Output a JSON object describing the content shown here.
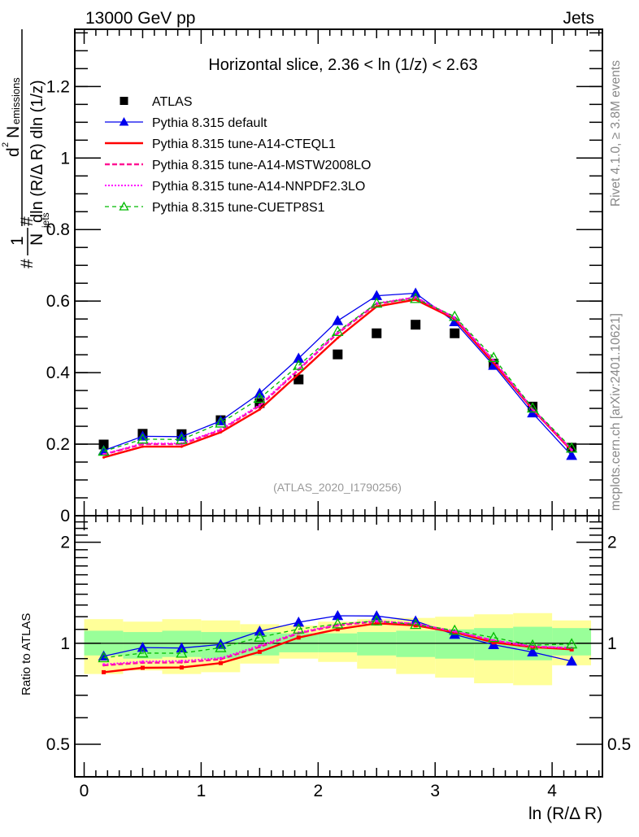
{
  "header": {
    "left_label": "13000 GeV pp",
    "right_label": "Jets"
  },
  "side_labels": {
    "rivet": "Rivet 4.1.0, ≥ 3.8M events",
    "mcplots": "mcplots.cern.ch [arXiv:2401.10621]"
  },
  "chart_data": [
    {
      "type": "line",
      "panel": "main",
      "title": "Horizontal slice, 2.36 < ln (1/z) < 2.63",
      "watermark": "(ATLAS_2020_I1790256)",
      "ylabel": "1/N_jets d²N_emissions / dln(R/ΔR) dln(1/z)",
      "ylabel_parts": {
        "prefix": "#",
        "one": "1",
        "njets_N": "N",
        "njets_sub": "jets",
        "hash2": "#",
        "num_d": "d",
        "num_sup": "2",
        "num_N": "N",
        "num_sub": "emissions",
        "den": "dln (R/Δ R) dln (1/z)"
      },
      "xlabel": "ln (R/Δ R)",
      "xlim": [
        -0.08,
        4.43
      ],
      "ylim": [
        0,
        1.36
      ],
      "yticks": [
        0,
        0.2,
        0.4,
        0.6,
        0.8,
        1,
        1.2
      ],
      "ytick_labels": [
        "0",
        "0.2",
        "0.4",
        "0.6",
        "0.8",
        "1",
        "1.2"
      ],
      "legend_position": "top-left",
      "x": [
        0.167,
        0.5,
        0.833,
        1.167,
        1.5,
        1.833,
        2.167,
        2.5,
        2.833,
        3.167,
        3.5,
        3.833,
        4.167
      ],
      "series": [
        {
          "name": "ATLAS",
          "style": "data",
          "color": "#000000",
          "marker": "square",
          "values": [
            0.199,
            0.229,
            0.228,
            0.267,
            0.315,
            0.381,
            0.451,
            0.51,
            0.534,
            0.51,
            0.425,
            0.305,
            0.19
          ]
        },
        {
          "name": "Pythia 8.315 default",
          "color": "#0000ee",
          "dash": "solid",
          "marker": "triangle-filled",
          "values": [
            0.182,
            0.222,
            0.221,
            0.265,
            0.342,
            0.44,
            0.545,
            0.615,
            0.622,
            0.542,
            0.42,
            0.287,
            0.168
          ]
        },
        {
          "name": "Pythia 8.315 tune-A14-CTEQL1",
          "color": "#ff0000",
          "dash": "solid-thick",
          "marker": "none",
          "values": [
            0.163,
            0.193,
            0.193,
            0.233,
            0.297,
            0.396,
            0.497,
            0.585,
            0.604,
            0.55,
            0.427,
            0.297,
            0.182
          ]
        },
        {
          "name": "Pythia 8.315 tune-A14-MSTW2008LO",
          "color": "#ff1493",
          "dash": "dashed",
          "marker": "none",
          "values": [
            0.171,
            0.2,
            0.2,
            0.239,
            0.307,
            0.408,
            0.51,
            0.592,
            0.61,
            0.553,
            0.433,
            0.298,
            0.184
          ]
        },
        {
          "name": "Pythia 8.315 tune-A14-NNPDF2.3LO",
          "color": "#ff00ff",
          "dash": "dotted",
          "marker": "none",
          "values": [
            0.172,
            0.202,
            0.202,
            0.241,
            0.31,
            0.41,
            0.513,
            0.594,
            0.611,
            0.554,
            0.434,
            0.299,
            0.184
          ]
        },
        {
          "name": "Pythia 8.315 tune-CUETP8S1",
          "color": "#00bb00",
          "dash": "dashed-light",
          "marker": "triangle-open",
          "values": [
            0.18,
            0.214,
            0.213,
            0.259,
            0.328,
            0.42,
            0.515,
            0.594,
            0.607,
            0.557,
            0.442,
            0.301,
            0.189
          ]
        }
      ]
    },
    {
      "type": "line",
      "panel": "ratio",
      "ylabel": "Ratio to ATLAS",
      "xlabel": "ln (R/Δ R)",
      "xlim": [
        -0.08,
        4.43
      ],
      "xticks": [
        0,
        1,
        2,
        3,
        4
      ],
      "xtick_labels": [
        "0",
        "1",
        "2",
        "3",
        "4"
      ],
      "ylim": [
        0.4,
        2.4
      ],
      "yscale": "log",
      "yticks": [
        0.5,
        1,
        2
      ],
      "ytick_labels": [
        "0.5",
        "1",
        "2"
      ],
      "reference_line": 1,
      "x": [
        0.167,
        0.5,
        0.833,
        1.167,
        1.5,
        1.833,
        2.167,
        2.5,
        2.833,
        3.167,
        3.5,
        3.833,
        4.167
      ],
      "bin_edges": [
        0,
        0.333,
        0.667,
        1.0,
        1.333,
        1.667,
        2.0,
        2.333,
        2.667,
        3.0,
        3.333,
        3.667,
        4.0,
        4.333
      ],
      "bands": {
        "inner_color": "#99ff99",
        "outer_color": "#ffff99",
        "inner_lo": [
          0.92,
          0.9,
          0.91,
          0.9,
          0.92,
          0.94,
          0.94,
          0.92,
          0.91,
          0.9,
          0.89,
          0.89,
          0.92
        ],
        "inner_hi": [
          1.09,
          1.08,
          1.09,
          1.08,
          1.08,
          1.07,
          1.07,
          1.08,
          1.09,
          1.1,
          1.11,
          1.12,
          1.11
        ],
        "outer_lo": [
          0.81,
          0.83,
          0.81,
          0.82,
          0.87,
          0.9,
          0.88,
          0.84,
          0.81,
          0.79,
          0.76,
          0.75,
          0.86
        ],
        "outer_hi": [
          1.18,
          1.16,
          1.18,
          1.17,
          1.14,
          1.13,
          1.16,
          1.18,
          1.19,
          1.2,
          1.22,
          1.23,
          1.17
        ]
      },
      "series": [
        {
          "name": "Pythia 8.315 default",
          "color": "#0000ee",
          "dash": "solid",
          "marker": "triangle-filled",
          "values": [
            0.915,
            0.971,
            0.968,
            0.992,
            1.086,
            1.155,
            1.208,
            1.206,
            1.165,
            1.062,
            0.99,
            0.941,
            0.884
          ]
        },
        {
          "name": "Pythia 8.315 tune-A14-CTEQL1",
          "color": "#ff0000",
          "dash": "solid-thick",
          "marker": "square-small",
          "values": [
            0.82,
            0.845,
            0.847,
            0.873,
            0.943,
            1.04,
            1.101,
            1.147,
            1.131,
            1.078,
            1.006,
            0.974,
            0.959
          ]
        },
        {
          "name": "Pythia 8.315 tune-A14-MSTW2008LO",
          "color": "#ff1493",
          "dash": "dashed",
          "marker": "none",
          "values": [
            0.86,
            0.875,
            0.877,
            0.896,
            0.975,
            1.071,
            1.13,
            1.161,
            1.142,
            1.084,
            1.018,
            0.977,
            0.968
          ]
        },
        {
          "name": "Pythia 8.315 tune-A14-NNPDF2.3LO",
          "color": "#ff00ff",
          "dash": "dotted",
          "marker": "none",
          "values": [
            0.865,
            0.882,
            0.886,
            0.903,
            0.984,
            1.076,
            1.137,
            1.165,
            1.144,
            1.086,
            1.021,
            0.98,
            0.968
          ]
        },
        {
          "name": "Pythia 8.315 tune-CUETP8S1",
          "color": "#00bb00",
          "dash": "dashed-light",
          "marker": "triangle-open",
          "values": [
            0.905,
            0.935,
            0.934,
            0.97,
            1.042,
            1.102,
            1.142,
            1.165,
            1.137,
            1.092,
            1.04,
            0.987,
            0.995
          ]
        }
      ]
    }
  ]
}
